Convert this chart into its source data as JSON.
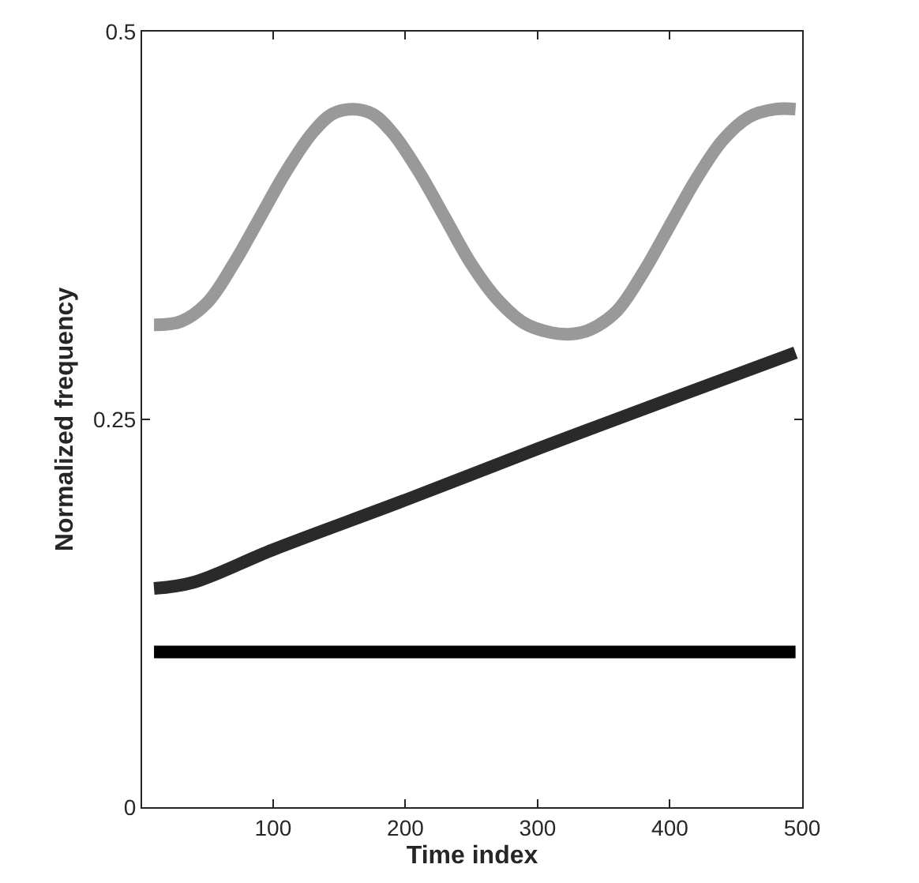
{
  "chart_data": {
    "type": "line",
    "xlabel": "Time index",
    "ylabel": "Normalized frequency",
    "xlim": [
      1,
      500
    ],
    "xticks": [
      100,
      200,
      300,
      400,
      500
    ],
    "ylim": [
      0,
      0.5
    ],
    "yticks": [
      0,
      0.25,
      0.5
    ],
    "series": [
      {
        "color": "#999999",
        "x": [
          10,
          30,
          50,
          70,
          90,
          110,
          130,
          145,
          160,
          175,
          190,
          210,
          230,
          250,
          270,
          290,
          310,
          325,
          340,
          360,
          380,
          400,
          420,
          440,
          460,
          480,
          495
        ],
        "values": [
          0.311,
          0.313,
          0.325,
          0.35,
          0.38,
          0.41,
          0.435,
          0.447,
          0.45,
          0.447,
          0.435,
          0.41,
          0.38,
          0.35,
          0.327,
          0.312,
          0.306,
          0.305,
          0.308,
          0.32,
          0.345,
          0.375,
          0.405,
          0.43,
          0.445,
          0.45,
          0.45
        ]
      },
      {
        "color": "#2a2a2a",
        "x": [
          10,
          40,
          100,
          200,
          300,
          400,
          495
        ],
        "values": [
          0.141,
          0.145,
          0.166,
          0.198,
          0.231,
          0.263,
          0.293
        ]
      },
      {
        "color": "#000000",
        "x": [
          10,
          495
        ],
        "values": [
          0.1,
          0.1
        ]
      }
    ]
  }
}
